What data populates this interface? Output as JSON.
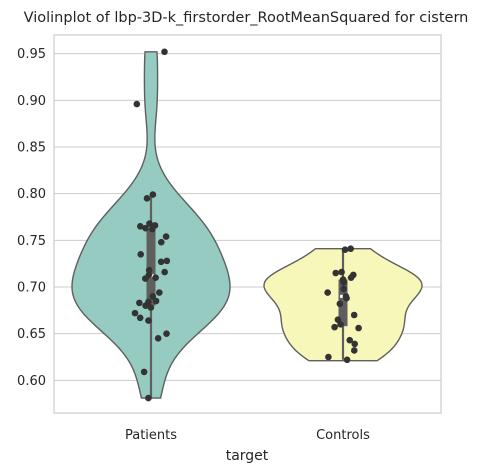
{
  "chart_data": {
    "type": "violin",
    "title": "Violinplot of lbp-3D-k_firstorder_RootMeanSquared for cistern",
    "xlabel": "target",
    "ylabel": "",
    "ylim": [
      0.565,
      0.97
    ],
    "yticks": [
      0.6,
      0.65,
      0.7,
      0.75,
      0.8,
      0.85,
      0.9,
      0.95
    ],
    "categories": [
      "Patients",
      "Controls"
    ],
    "grid": true,
    "series": [
      {
        "category": "Patients",
        "color": "#95cbc1",
        "range": [
          0.581,
          0.952
        ],
        "box": {
          "q1": 0.68,
          "median": 0.712,
          "q3": 0.762,
          "whisker_low": 0.581,
          "whisker_high": 0.798
        },
        "points": [
          0.952,
          0.896,
          0.799,
          0.795,
          0.768,
          0.766,
          0.765,
          0.763,
          0.762,
          0.754,
          0.748,
          0.735,
          0.728,
          0.727,
          0.718,
          0.716,
          0.713,
          0.71,
          0.709,
          0.694,
          0.69,
          0.685,
          0.684,
          0.683,
          0.68,
          0.678,
          0.672,
          0.667,
          0.664,
          0.65,
          0.645,
          0.609,
          0.581
        ]
      },
      {
        "category": "Controls",
        "color": "#f8f7ba",
        "range": [
          0.621,
          0.741
        ],
        "box": {
          "q1": 0.658,
          "median": 0.69,
          "q3": 0.708,
          "whisker_low": 0.622,
          "whisker_high": 0.741
        },
        "points": [
          0.741,
          0.74,
          0.716,
          0.715,
          0.713,
          0.71,
          0.708,
          0.705,
          0.698,
          0.694,
          0.69,
          0.688,
          0.682,
          0.67,
          0.665,
          0.66,
          0.657,
          0.656,
          0.643,
          0.639,
          0.632,
          0.625,
          0.622
        ]
      }
    ]
  }
}
